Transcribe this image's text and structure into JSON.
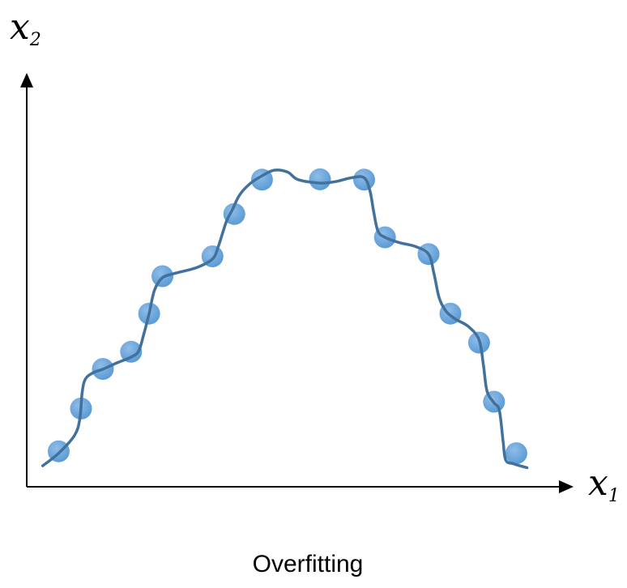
{
  "axes": {
    "x_var": "x",
    "x_sub": "1",
    "y_var": "x",
    "y_sub": "2"
  },
  "caption": "Overfitting",
  "colors": {
    "point": "#5b9bd5",
    "point_highlight": "#8fbde8",
    "curve": "#41719c",
    "axis": "#000000"
  },
  "chart_data": {
    "type": "scatter",
    "x_range": [
      0,
      100
    ],
    "y_range": [
      0,
      100
    ],
    "points": [
      {
        "x": 6.0,
        "y": 9.3
      },
      {
        "x": 10.2,
        "y": 20.5
      },
      {
        "x": 14.3,
        "y": 30.9
      },
      {
        "x": 19.6,
        "y": 35.4
      },
      {
        "x": 23.0,
        "y": 45.4
      },
      {
        "x": 25.5,
        "y": 55.2
      },
      {
        "x": 34.9,
        "y": 60.4
      },
      {
        "x": 39.0,
        "y": 71.5
      },
      {
        "x": 44.2,
        "y": 80.5
      },
      {
        "x": 55.1,
        "y": 80.6
      },
      {
        "x": 63.4,
        "y": 80.5
      },
      {
        "x": 67.3,
        "y": 65.4
      },
      {
        "x": 75.5,
        "y": 61.0
      },
      {
        "x": 79.6,
        "y": 45.4
      },
      {
        "x": 85.0,
        "y": 37.8
      },
      {
        "x": 87.8,
        "y": 22.3
      },
      {
        "x": 92.0,
        "y": 8.8
      }
    ],
    "curve": [
      [
        3.0,
        5.5
      ],
      [
        6.0,
        8.8
      ],
      [
        9.0,
        13.5
      ],
      [
        10.0,
        18.0
      ],
      [
        10.4,
        24.5
      ],
      [
        11.0,
        28.2
      ],
      [
        12.5,
        29.9
      ],
      [
        14.3,
        30.8
      ],
      [
        17.0,
        32.5
      ],
      [
        19.6,
        34.0
      ],
      [
        21.0,
        35.5
      ],
      [
        22.0,
        40.0
      ],
      [
        23.0,
        45.4
      ],
      [
        24.0,
        51.5
      ],
      [
        25.5,
        54.8
      ],
      [
        28.0,
        56.0
      ],
      [
        32.0,
        57.5
      ],
      [
        34.9,
        59.7
      ],
      [
        36.0,
        63.0
      ],
      [
        37.5,
        69.5
      ],
      [
        38.6,
        72.5
      ],
      [
        40.0,
        76.5
      ],
      [
        42.0,
        79.5
      ],
      [
        44.2,
        81.5
      ],
      [
        46.5,
        83.0
      ],
      [
        49.0,
        82.5
      ],
      [
        51.0,
        80.5
      ],
      [
        55.1,
        79.6
      ],
      [
        58.0,
        80.0
      ],
      [
        61.0,
        81.0
      ],
      [
        63.4,
        81.0
      ],
      [
        64.5,
        77.5
      ],
      [
        65.2,
        72.0
      ],
      [
        66.0,
        67.0
      ],
      [
        67.3,
        65.4
      ],
      [
        70.0,
        64.0
      ],
      [
        73.0,
        63.0
      ],
      [
        75.5,
        61.0
      ],
      [
        76.5,
        56.0
      ],
      [
        77.5,
        49.5
      ],
      [
        78.8,
        46.0
      ],
      [
        80.5,
        44.0
      ],
      [
        83.0,
        42.0
      ],
      [
        85.0,
        38.5
      ],
      [
        85.8,
        32.0
      ],
      [
        86.5,
        25.0
      ],
      [
        87.8,
        22.0
      ],
      [
        88.8,
        20.0
      ],
      [
        89.5,
        12.0
      ],
      [
        90.0,
        7.0
      ],
      [
        91.5,
        6.0
      ],
      [
        94.0,
        5.0
      ]
    ]
  }
}
